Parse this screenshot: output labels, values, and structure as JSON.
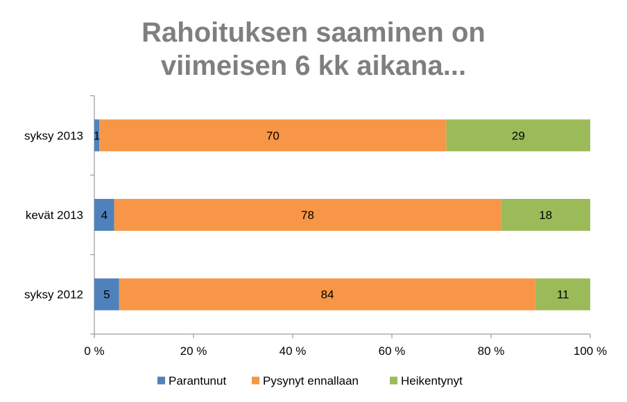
{
  "chart_data": {
    "type": "bar",
    "orientation": "horizontal",
    "stacked": "percent",
    "title_lines": [
      "Rahoituksen saaminen on",
      "viimeisen 6 kk aikana..."
    ],
    "categories": [
      "syksy 2013",
      "kevät 2013",
      "syksy 2012"
    ],
    "series": [
      {
        "name": "Parantunut",
        "color": "#4f81bd",
        "values": [
          1,
          4,
          5
        ]
      },
      {
        "name": "Pysynyt ennallaan",
        "color": "#f79646",
        "values": [
          70,
          78,
          84
        ]
      },
      {
        "name": "Heikentynyt",
        "color": "#9bbb59",
        "values": [
          29,
          18,
          11
        ]
      }
    ],
    "xlim": [
      0,
      100
    ],
    "x_ticks": [
      0,
      20,
      40,
      60,
      80,
      100
    ],
    "x_tick_labels": [
      "0 %",
      "20 %",
      "40 %",
      "60 %",
      "80 %",
      "100 %"
    ],
    "grid": false,
    "legend_position": "bottom"
  }
}
